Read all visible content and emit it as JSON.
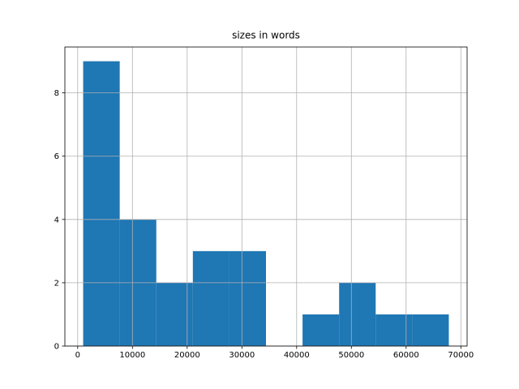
{
  "chart_data": {
    "type": "histogram",
    "title": "sizes in words",
    "bins": [
      1000,
      7680,
      14360,
      21040,
      27720,
      34400,
      41080,
      47760,
      54440,
      61120,
      67800
    ],
    "counts": [
      9,
      4,
      2,
      3,
      3,
      0,
      1,
      2,
      1,
      1
    ],
    "color": "#1f77b4",
    "xlim": [
      -2340,
      71140
    ],
    "xticks": [
      0,
      10000,
      20000,
      30000,
      40000,
      50000,
      60000,
      70000
    ],
    "ylim": [
      0,
      9.45
    ],
    "yticks": [
      0,
      2,
      4,
      6,
      8
    ],
    "grid": true
  }
}
